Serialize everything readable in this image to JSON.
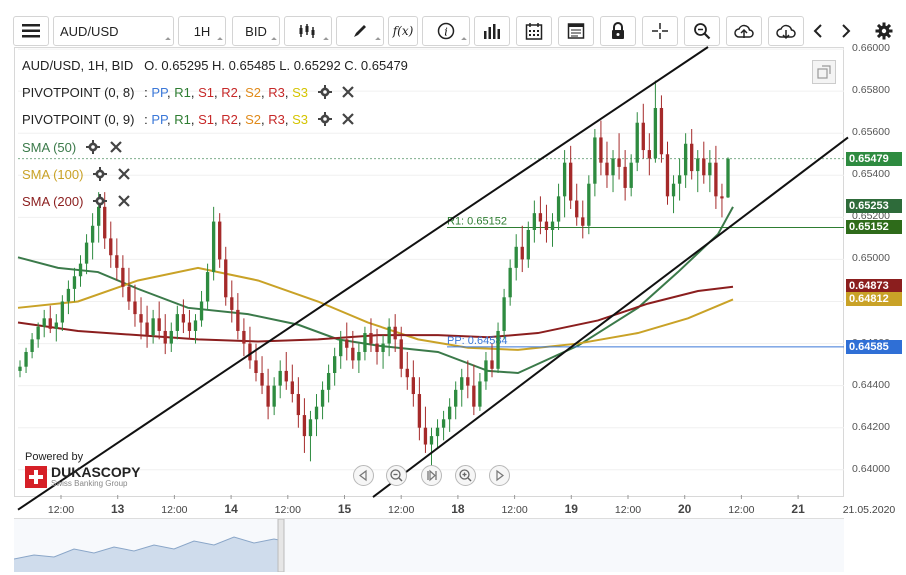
{
  "toolbar": {
    "instrument": "AUD/USD",
    "timeframe": "1H",
    "price_side": "BID",
    "function_label": "f(x)",
    "info_label": "i"
  },
  "legend": {
    "ohlc_prefix": "AUD/USD, 1H, BID",
    "ohlc": "O. 0.65295 H. 0.65485 L. 0.65292 C. 0.65479",
    "pivot1": "PIVOTPOINT (0, 8)",
    "pivot2": "PIVOTPOINT (0, 9)",
    "pivot_levels": [
      "PP",
      "R1",
      "S1",
      "R2",
      "S2",
      "R3",
      "S3"
    ],
    "sma50": "SMA (50)",
    "sma100": "SMA (100)",
    "sma200": "SMA (200)"
  },
  "branding": {
    "powered_by": "Powered by",
    "logo_text": "DUKASCOPY",
    "tagline": "Swiss Banking Group"
  },
  "colors": {
    "up": "#2e8b40",
    "down": "#a52a2a",
    "sma50": "#3b7a4a",
    "sma100": "#c9a227",
    "sma200": "#8b1e1e",
    "pp": "#3b78d8",
    "r1": "#2e7d32",
    "s1": "#c62828",
    "r2": "#c62828",
    "s2": "#e08a1a",
    "r3": "#c62828",
    "s3": "#d4c400"
  },
  "chart_data": {
    "type": "candlestick",
    "symbol": "AUD/USD",
    "timeframe": "1H",
    "ylim": [
      0.6388,
      0.6601
    ],
    "y_ticks": [
      "0.66000",
      "0.65800",
      "0.65600",
      "0.65400",
      "0.65200",
      "0.65000",
      "0.64800",
      "0.64600",
      "0.64400",
      "0.64200",
      "0.64000"
    ],
    "x_ticks": [
      {
        "label": "12:00",
        "day": false
      },
      {
        "label": "13",
        "day": true
      },
      {
        "label": "12:00",
        "day": false
      },
      {
        "label": "14",
        "day": true
      },
      {
        "label": "12:00",
        "day": false
      },
      {
        "label": "15",
        "day": true
      },
      {
        "label": "12:00",
        "day": false
      },
      {
        "label": "18",
        "day": true
      },
      {
        "label": "12:00",
        "day": false
      },
      {
        "label": "19",
        "day": true
      },
      {
        "label": "12:00",
        "day": false
      },
      {
        "label": "20",
        "day": true
      },
      {
        "label": "12:00",
        "day": false
      },
      {
        "label": "21",
        "day": true
      },
      {
        "label": "21.05.2020",
        "day": false
      }
    ],
    "last_close": 0.65479,
    "last_ohlc": {
      "open": 0.65295,
      "high": 0.65485,
      "low": 0.65292,
      "close": 0.65479
    },
    "pivot_lines": [
      {
        "name": "R1",
        "value": 0.65152,
        "label": "R1: 0.65152"
      },
      {
        "name": "PP",
        "value": 0.64584,
        "label": "PP: 0.64584"
      }
    ],
    "price_labels": [
      {
        "value": "0.65479",
        "price": 0.65479,
        "color": "#2e8b40"
      },
      {
        "value": "0.65253",
        "price": 0.65253,
        "color": "#2e6b3a"
      },
      {
        "value": "0.65152",
        "price": 0.65152,
        "color": "#2e6b1a"
      },
      {
        "value": "0.64873",
        "price": 0.64873,
        "color": "#8b1e1e"
      },
      {
        "value": "0.64812",
        "price": 0.64812,
        "color": "#c9a227"
      },
      {
        "value": "0.64585",
        "price": 0.64585,
        "color": "#2f6fd6"
      }
    ],
    "trendlines": [
      {
        "from": [
          0,
          0.6381
        ],
        "to": [
          690,
          0.6601
        ]
      },
      {
        "from": [
          355,
          0.6387
        ],
        "to": [
          830,
          0.6558
        ]
      }
    ],
    "candles": [
      [
        0.6447,
        0.6452,
        0.6444,
        0.6449
      ],
      [
        0.6449,
        0.6458,
        0.6446,
        0.6456
      ],
      [
        0.6456,
        0.6465,
        0.6453,
        0.6462
      ],
      [
        0.6462,
        0.647,
        0.6458,
        0.6468
      ],
      [
        0.6468,
        0.6476,
        0.6463,
        0.6472
      ],
      [
        0.6472,
        0.6478,
        0.6465,
        0.6467
      ],
      [
        0.6467,
        0.6474,
        0.6461,
        0.647
      ],
      [
        0.647,
        0.6483,
        0.6466,
        0.648
      ],
      [
        0.648,
        0.649,
        0.6474,
        0.6486
      ],
      [
        0.6486,
        0.6496,
        0.648,
        0.6492
      ],
      [
        0.6492,
        0.6502,
        0.6487,
        0.6498
      ],
      [
        0.6498,
        0.6512,
        0.6493,
        0.6508
      ],
      [
        0.6508,
        0.6522,
        0.65,
        0.6516
      ],
      [
        0.6516,
        0.6532,
        0.6508,
        0.6525
      ],
      [
        0.6525,
        0.6532,
        0.6505,
        0.651
      ],
      [
        0.651,
        0.6518,
        0.6496,
        0.6502
      ],
      [
        0.6502,
        0.651,
        0.649,
        0.6496
      ],
      [
        0.6496,
        0.6502,
        0.6482,
        0.6487
      ],
      [
        0.6487,
        0.6496,
        0.6476,
        0.648
      ],
      [
        0.648,
        0.6488,
        0.6468,
        0.6474
      ],
      [
        0.6474,
        0.6482,
        0.6462,
        0.647
      ],
      [
        0.647,
        0.6478,
        0.6458,
        0.6464
      ],
      [
        0.6464,
        0.6476,
        0.646,
        0.6472
      ],
      [
        0.6472,
        0.648,
        0.6462,
        0.6466
      ],
      [
        0.6466,
        0.6474,
        0.6455,
        0.646
      ],
      [
        0.646,
        0.647,
        0.6456,
        0.6466
      ],
      [
        0.6466,
        0.6478,
        0.6462,
        0.6474
      ],
      [
        0.6474,
        0.6481,
        0.6465,
        0.647
      ],
      [
        0.647,
        0.6476,
        0.6462,
        0.6466
      ],
      [
        0.6466,
        0.6474,
        0.646,
        0.6471
      ],
      [
        0.6471,
        0.6485,
        0.6468,
        0.648
      ],
      [
        0.648,
        0.6498,
        0.6476,
        0.6494
      ],
      [
        0.6494,
        0.6525,
        0.649,
        0.6518
      ],
      [
        0.6518,
        0.6522,
        0.6496,
        0.65
      ],
      [
        0.65,
        0.6506,
        0.6478,
        0.6482
      ],
      [
        0.6482,
        0.649,
        0.647,
        0.6476
      ],
      [
        0.6476,
        0.6484,
        0.6462,
        0.6466
      ],
      [
        0.6466,
        0.6472,
        0.6454,
        0.646
      ],
      [
        0.646,
        0.6468,
        0.6448,
        0.6452
      ],
      [
        0.6452,
        0.646,
        0.6442,
        0.6446
      ],
      [
        0.6446,
        0.6454,
        0.6436,
        0.644
      ],
      [
        0.644,
        0.6448,
        0.6424,
        0.643
      ],
      [
        0.643,
        0.6444,
        0.6426,
        0.644
      ],
      [
        0.644,
        0.6452,
        0.6434,
        0.6447
      ],
      [
        0.6447,
        0.6456,
        0.6438,
        0.6442
      ],
      [
        0.6442,
        0.645,
        0.6432,
        0.6436
      ],
      [
        0.6436,
        0.6444,
        0.642,
        0.6426
      ],
      [
        0.6426,
        0.6434,
        0.6408,
        0.6416
      ],
      [
        0.6416,
        0.6428,
        0.6404,
        0.6424
      ],
      [
        0.6424,
        0.6436,
        0.6416,
        0.643
      ],
      [
        0.643,
        0.6442,
        0.6424,
        0.6438
      ],
      [
        0.6438,
        0.645,
        0.6432,
        0.6446
      ],
      [
        0.6446,
        0.6458,
        0.644,
        0.6454
      ],
      [
        0.6454,
        0.6466,
        0.6448,
        0.6462
      ],
      [
        0.6462,
        0.647,
        0.6452,
        0.6458
      ],
      [
        0.6458,
        0.6466,
        0.6448,
        0.6452
      ],
      [
        0.6452,
        0.646,
        0.6446,
        0.6456
      ],
      [
        0.6456,
        0.6468,
        0.6452,
        0.6465
      ],
      [
        0.6465,
        0.6472,
        0.6456,
        0.646
      ],
      [
        0.646,
        0.6467,
        0.645,
        0.6456
      ],
      [
        0.6456,
        0.6464,
        0.6448,
        0.646
      ],
      [
        0.646,
        0.6472,
        0.6454,
        0.6468
      ],
      [
        0.6468,
        0.6474,
        0.6456,
        0.6462
      ],
      [
        0.6462,
        0.6468,
        0.6444,
        0.6448
      ],
      [
        0.6448,
        0.6456,
        0.6438,
        0.6444
      ],
      [
        0.6444,
        0.6452,
        0.643,
        0.6436
      ],
      [
        0.6436,
        0.6444,
        0.6414,
        0.642
      ],
      [
        0.642,
        0.643,
        0.6408,
        0.6412
      ],
      [
        0.6412,
        0.642,
        0.6402,
        0.6416
      ],
      [
        0.6416,
        0.6424,
        0.641,
        0.642
      ],
      [
        0.642,
        0.6428,
        0.6414,
        0.6424
      ],
      [
        0.6424,
        0.6434,
        0.6418,
        0.643
      ],
      [
        0.643,
        0.6442,
        0.6424,
        0.6438
      ],
      [
        0.6438,
        0.6448,
        0.643,
        0.6444
      ],
      [
        0.6444,
        0.6452,
        0.6434,
        0.644
      ],
      [
        0.644,
        0.645,
        0.6426,
        0.643
      ],
      [
        0.643,
        0.6446,
        0.6428,
        0.6442
      ],
      [
        0.6442,
        0.6456,
        0.6438,
        0.6452
      ],
      [
        0.6452,
        0.646,
        0.6444,
        0.6448
      ],
      [
        0.6448,
        0.647,
        0.6446,
        0.6466
      ],
      [
        0.6466,
        0.6486,
        0.6462,
        0.6482
      ],
      [
        0.6482,
        0.65,
        0.6478,
        0.6496
      ],
      [
        0.6496,
        0.6512,
        0.649,
        0.6506
      ],
      [
        0.6506,
        0.6516,
        0.6494,
        0.65
      ],
      [
        0.65,
        0.6518,
        0.6496,
        0.6514
      ],
      [
        0.6514,
        0.6528,
        0.6508,
        0.6522
      ],
      [
        0.6522,
        0.653,
        0.6512,
        0.6518
      ],
      [
        0.6518,
        0.6526,
        0.6508,
        0.6514
      ],
      [
        0.6514,
        0.6522,
        0.6506,
        0.6518
      ],
      [
        0.6518,
        0.6536,
        0.6514,
        0.653
      ],
      [
        0.653,
        0.6552,
        0.652,
        0.6546
      ],
      [
        0.6546,
        0.6554,
        0.6524,
        0.6528
      ],
      [
        0.6528,
        0.6536,
        0.6516,
        0.652
      ],
      [
        0.652,
        0.6528,
        0.651,
        0.6516
      ],
      [
        0.6516,
        0.654,
        0.6512,
        0.6536
      ],
      [
        0.6536,
        0.6562,
        0.653,
        0.6558
      ],
      [
        0.6558,
        0.6566,
        0.654,
        0.6546
      ],
      [
        0.6546,
        0.6556,
        0.6534,
        0.654
      ],
      [
        0.654,
        0.6552,
        0.6532,
        0.6548
      ],
      [
        0.6548,
        0.656,
        0.6538,
        0.6544
      ],
      [
        0.6544,
        0.6552,
        0.6528,
        0.6534
      ],
      [
        0.6534,
        0.655,
        0.653,
        0.6546
      ],
      [
        0.6546,
        0.657,
        0.6542,
        0.6565
      ],
      [
        0.6565,
        0.6574,
        0.6548,
        0.6552
      ],
      [
        0.6552,
        0.656,
        0.654,
        0.6548
      ],
      [
        0.6548,
        0.6585,
        0.6546,
        0.6572
      ],
      [
        0.6572,
        0.6578,
        0.6546,
        0.655
      ],
      [
        0.655,
        0.6556,
        0.6526,
        0.653
      ],
      [
        0.653,
        0.654,
        0.6522,
        0.6536
      ],
      [
        0.6536,
        0.6548,
        0.6528,
        0.654
      ],
      [
        0.654,
        0.656,
        0.6534,
        0.6555
      ],
      [
        0.6555,
        0.6562,
        0.6538,
        0.6542
      ],
      [
        0.6542,
        0.6552,
        0.6532,
        0.6548
      ],
      [
        0.6548,
        0.6556,
        0.6536,
        0.654
      ],
      [
        0.654,
        0.6552,
        0.6532,
        0.6546
      ],
      [
        0.6546,
        0.6554,
        0.6524,
        0.653
      ],
      [
        0.653,
        0.6536,
        0.652,
        0.6529
      ],
      [
        0.65295,
        0.65485,
        0.65292,
        0.65479
      ]
    ],
    "sma_series": [
      {
        "name": "SMA (50)",
        "color": "#3b7a4a",
        "points": [
          [
            0,
            0.6501
          ],
          [
            40,
            0.6496
          ],
          [
            80,
            0.6494
          ],
          [
            120,
            0.6486
          ],
          [
            170,
            0.6477
          ],
          [
            230,
            0.6474
          ],
          [
            280,
            0.6469
          ],
          [
            320,
            0.6462
          ],
          [
            360,
            0.6459
          ],
          [
            420,
            0.6456
          ],
          [
            470,
            0.6447
          ],
          [
            500,
            0.6446
          ],
          [
            560,
            0.6459
          ],
          [
            620,
            0.6477
          ],
          [
            660,
            0.6494
          ],
          [
            700,
            0.6512
          ],
          [
            715,
            0.6525
          ]
        ]
      },
      {
        "name": "SMA (100)",
        "color": "#c9a227",
        "points": [
          [
            0,
            0.6477
          ],
          [
            60,
            0.648
          ],
          [
            120,
            0.649
          ],
          [
            180,
            0.6496
          ],
          [
            240,
            0.649
          ],
          [
            300,
            0.648
          ],
          [
            350,
            0.647
          ],
          [
            400,
            0.6462
          ],
          [
            450,
            0.6458
          ],
          [
            500,
            0.6457
          ],
          [
            560,
            0.646
          ],
          [
            620,
            0.6465
          ],
          [
            670,
            0.6472
          ],
          [
            715,
            0.6481
          ]
        ]
      },
      {
        "name": "SMA (200)",
        "color": "#8b1e1e",
        "points": [
          [
            0,
            0.647
          ],
          [
            60,
            0.6466
          ],
          [
            120,
            0.6464
          ],
          [
            180,
            0.6462
          ],
          [
            240,
            0.6461
          ],
          [
            300,
            0.6462
          ],
          [
            360,
            0.6464
          ],
          [
            420,
            0.6464
          ],
          [
            470,
            0.6463
          ],
          [
            520,
            0.6465
          ],
          [
            580,
            0.6471
          ],
          [
            630,
            0.6479
          ],
          [
            680,
            0.6485
          ],
          [
            715,
            0.6487
          ]
        ]
      }
    ]
  }
}
